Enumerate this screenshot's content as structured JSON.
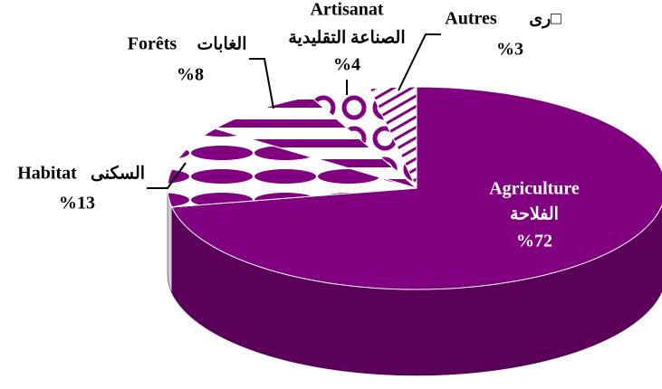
{
  "chart_data": {
    "type": "pie",
    "categories": [
      "Agriculture",
      "Habitat",
      "Forêts",
      "Artisanat",
      "Autres"
    ],
    "categories_ar": [
      "الفلاحة",
      "السكنى",
      "الغابات",
      "الصناعة التقليدية",
      "□رى"
    ],
    "values": [
      72,
      13,
      8,
      4,
      3
    ],
    "value_labels": [
      "%72",
      "%13",
      "%8",
      "%4",
      "%3"
    ],
    "color": "#800080"
  }
}
